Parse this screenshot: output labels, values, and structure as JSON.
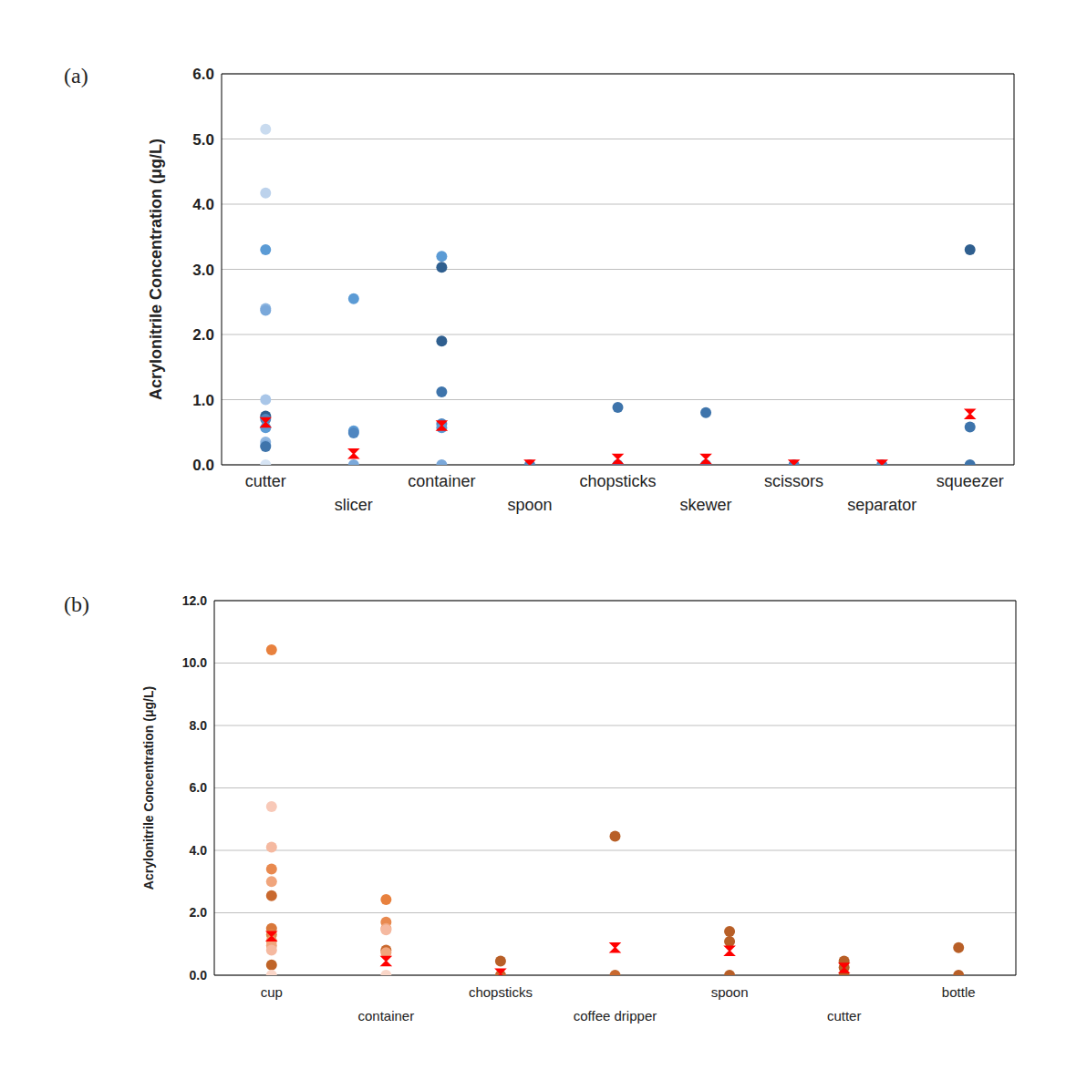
{
  "chart_data": [
    {
      "type": "scatter",
      "title": "(a)",
      "y_label": "Acrylonitrile Concentration (μg/L)",
      "categories": [
        "cutter",
        "slicer",
        "container",
        "spoon",
        "chopsticks",
        "skewer",
        "scissors",
        "separator",
        "squeezer"
      ],
      "ylim": [
        0,
        6
      ],
      "yticks": [
        {
          "value": 0,
          "label": "0.0"
        },
        {
          "value": 1,
          "label": "1.0"
        },
        {
          "value": 2,
          "label": "2.0"
        },
        {
          "value": 3,
          "label": "3.0"
        },
        {
          "value": 4,
          "label": "4.0"
        },
        {
          "value": 5,
          "label": "5.0"
        },
        {
          "value": 6,
          "label": "6.0"
        }
      ],
      "grid": true,
      "series": [
        {
          "marker": "circle",
          "x": [
            "cutter",
            "cutter",
            "cutter",
            "cutter",
            "cutter",
            "cutter",
            "cutter",
            "cutter",
            "cutter",
            "cutter",
            "cutter",
            "cutter",
            "cutter",
            "slicer",
            "slicer",
            "slicer",
            "slicer",
            "container",
            "container",
            "container",
            "container",
            "container",
            "container",
            "container",
            "spoon",
            "chopsticks",
            "chopsticks",
            "skewer",
            "skewer",
            "scissors",
            "separator",
            "squeezer",
            "squeezer",
            "squeezer"
          ],
          "values": [
            5.15,
            4.17,
            3.3,
            2.4,
            2.37,
            1.0,
            0.75,
            0.7,
            0.57,
            0.35,
            0.3,
            0.28,
            0.0,
            2.55,
            0.52,
            0.49,
            0.0,
            3.2,
            3.03,
            1.9,
            1.12,
            0.63,
            0.57,
            0.0,
            0.0,
            0.88,
            0.0,
            0.8,
            0.0,
            0.0,
            0.0,
            3.3,
            0.58,
            0.0
          ],
          "colors": [
            "#c9dbef",
            "#bcd2ec",
            "#5b9bd5",
            "#8fb6e0",
            "#7aa8da",
            "#a9c6e8",
            "#2f5f8f",
            "#4f86c0",
            "#5b9bd5",
            "#8fb6e0",
            "#7aa8da",
            "#3e74ab",
            "#d6e4f4",
            "#5b9bd5",
            "#5b9bd5",
            "#4f86c0",
            "#7aa8da",
            "#5b9bd5",
            "#2f5f8f",
            "#2f5f8f",
            "#3e74ab",
            "#4f86c0",
            "#5b9bd5",
            "#7aa8da",
            "#4f86c0",
            "#3e74ab",
            "#4f86c0",
            "#3e74ab",
            "#4f86c0",
            "#4f86c0",
            "#4f86c0",
            "#2f5f8f",
            "#3e74ab",
            "#3e74ab"
          ]
        },
        {
          "marker": "x",
          "color": "#ff0000",
          "values": [
            0.65,
            0.17,
            0.6,
            0.0,
            0.09,
            0.09,
            0.0,
            0.0,
            0.78
          ]
        }
      ]
    },
    {
      "type": "scatter",
      "title": "(b)",
      "y_label": "Acrylonitrile Concentration (μg/L)",
      "categories": [
        "cup",
        "container",
        "chopsticks",
        "coffee dripper",
        "spoon",
        "cutter",
        "bottle"
      ],
      "ylim": [
        0,
        12
      ],
      "yticks": [
        {
          "value": 0,
          "label": "0.0"
        },
        {
          "value": 2,
          "label": "2.0"
        },
        {
          "value": 4,
          "label": "4.0"
        },
        {
          "value": 6,
          "label": "6.0"
        },
        {
          "value": 8,
          "label": "8.0"
        },
        {
          "value": 10,
          "label": "10.0"
        },
        {
          "value": 12,
          "label": "12.0"
        }
      ],
      "grid": true,
      "series": [
        {
          "marker": "circle",
          "x": [
            "cup",
            "cup",
            "cup",
            "cup",
            "cup",
            "cup",
            "cup",
            "cup",
            "cup",
            "cup",
            "cup",
            "cup",
            "cup",
            "container",
            "container",
            "container",
            "container",
            "container",
            "container",
            "container",
            "chopsticks",
            "chopsticks",
            "coffee dripper",
            "coffee dripper",
            "spoon",
            "spoon",
            "spoon",
            "cutter",
            "cutter",
            "cutter",
            "bottle",
            "bottle"
          ],
          "values": [
            10.42,
            5.4,
            4.1,
            3.4,
            3.0,
            2.55,
            1.5,
            1.3,
            1.1,
            0.95,
            0.8,
            0.33,
            0.0,
            2.42,
            1.7,
            1.5,
            1.45,
            0.8,
            0.72,
            0.0,
            0.45,
            0.0,
            4.45,
            0.0,
            1.4,
            1.08,
            0.0,
            0.45,
            0.25,
            0.0,
            0.88,
            0.0
          ],
          "colors": [
            "#e8813e",
            "#f8c9b8",
            "#f5b9a0",
            "#e8894f",
            "#f0a57c",
            "#c9692f",
            "#d9783b",
            "#e0854a",
            "#ec9a66",
            "#f0a57c",
            "#f5b9a0",
            "#bf6428",
            "#fad6c8",
            "#e8813e",
            "#e8894f",
            "#f0a57c",
            "#f5b9a0",
            "#c9692f",
            "#f0a57c",
            "#fad6c8",
            "#b85f27",
            "#c9692f",
            "#b85f27",
            "#c9692f",
            "#b85f27",
            "#b85f27",
            "#b85f27",
            "#b85f27",
            "#b85f27",
            "#b85f27",
            "#b85f27",
            "#b85f27"
          ]
        },
        {
          "marker": "x",
          "color": "#ff0000",
          "values": [
            1.25,
            0.45,
            0.05,
            0.88,
            0.78,
            0.23,
            null
          ]
        }
      ]
    }
  ]
}
